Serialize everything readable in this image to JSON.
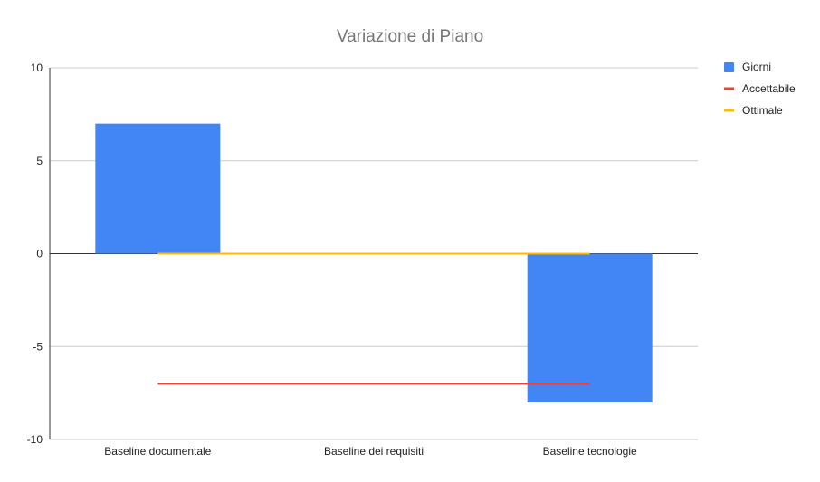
{
  "chart_data": {
    "type": "bar",
    "title": "Variazione di Piano",
    "xlabel": "",
    "ylabel": "",
    "categories": [
      "Baseline documentale",
      "Baseline dei requisiti",
      "Baseline tecnologie"
    ],
    "ylim": [
      -10,
      10
    ],
    "yticks": [
      10,
      5,
      0,
      -5,
      -10
    ],
    "grid": true,
    "legend_position": "right",
    "series": [
      {
        "name": "Giorni",
        "kind": "bar",
        "color": "#4285f4",
        "values": [
          7,
          0,
          -8
        ]
      },
      {
        "name": "Accettabile",
        "kind": "line",
        "color": "#ea4335",
        "values": [
          -7,
          -7,
          -7
        ]
      },
      {
        "name": "Ottimale",
        "kind": "line",
        "color": "#fbbc04",
        "values": [
          0,
          0,
          0
        ]
      }
    ]
  }
}
